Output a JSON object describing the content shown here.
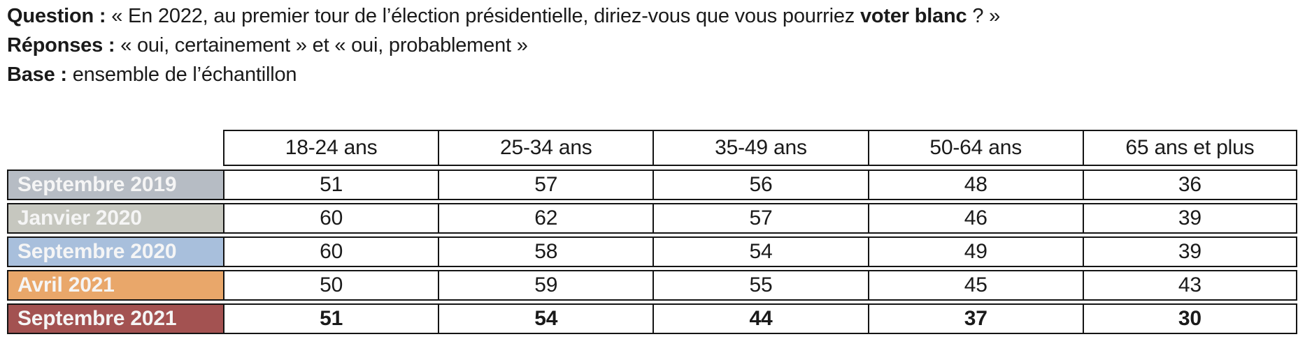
{
  "intro": {
    "question_label": "Question :",
    "question_before": "« En 2022, au premier tour de l’élection présidentielle, diriez-vous que vous pourriez ",
    "question_bold": "voter blanc",
    "question_after": " ? »",
    "responses_label": "Réponses :",
    "responses_text": "« oui, certainement » et « oui, probablement »",
    "base_label": "Base :",
    "base_text": "ensemble de l’échantillon"
  },
  "chart_data": {
    "type": "table",
    "categories": [
      "18-24 ans",
      "25-34 ans",
      "35-49 ans",
      "50-64 ans",
      "65 ans et plus"
    ],
    "series": [
      {
        "name": "Septembre 2019",
        "color": "#b6bcc4",
        "bold": false,
        "values": [
          51,
          57,
          56,
          48,
          36
        ]
      },
      {
        "name": "Janvier 2020",
        "color": "#c6c7bf",
        "bold": false,
        "values": [
          60,
          62,
          57,
          46,
          39
        ]
      },
      {
        "name": "Septembre 2020",
        "color": "#a8bfdc",
        "bold": false,
        "values": [
          60,
          58,
          54,
          49,
          39
        ]
      },
      {
        "name": "Avril 2021",
        "color": "#e9a76a",
        "bold": false,
        "values": [
          50,
          59,
          55,
          45,
          43
        ]
      },
      {
        "name": "Septembre 2021",
        "color": "#a35251",
        "bold": true,
        "values": [
          51,
          54,
          44,
          37,
          30
        ]
      }
    ],
    "legend_position": "left-row-headers",
    "grid": true
  }
}
